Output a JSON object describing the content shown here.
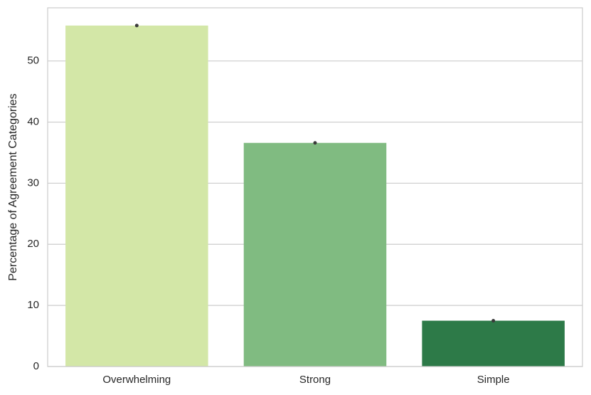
{
  "chart_data": {
    "type": "bar",
    "ylabel": "Percentage of Agreement Categories",
    "categories": [
      "Overwhelming",
      "Strong",
      "Simple"
    ],
    "values": [
      55.8,
      36.6,
      7.5
    ],
    "colors": [
      "#d3e7a7",
      "#80bb81",
      "#2d7a48"
    ],
    "ylim": [
      0,
      58.7
    ],
    "yticks": [
      0,
      10,
      20,
      30,
      40,
      50
    ],
    "grid": true
  }
}
